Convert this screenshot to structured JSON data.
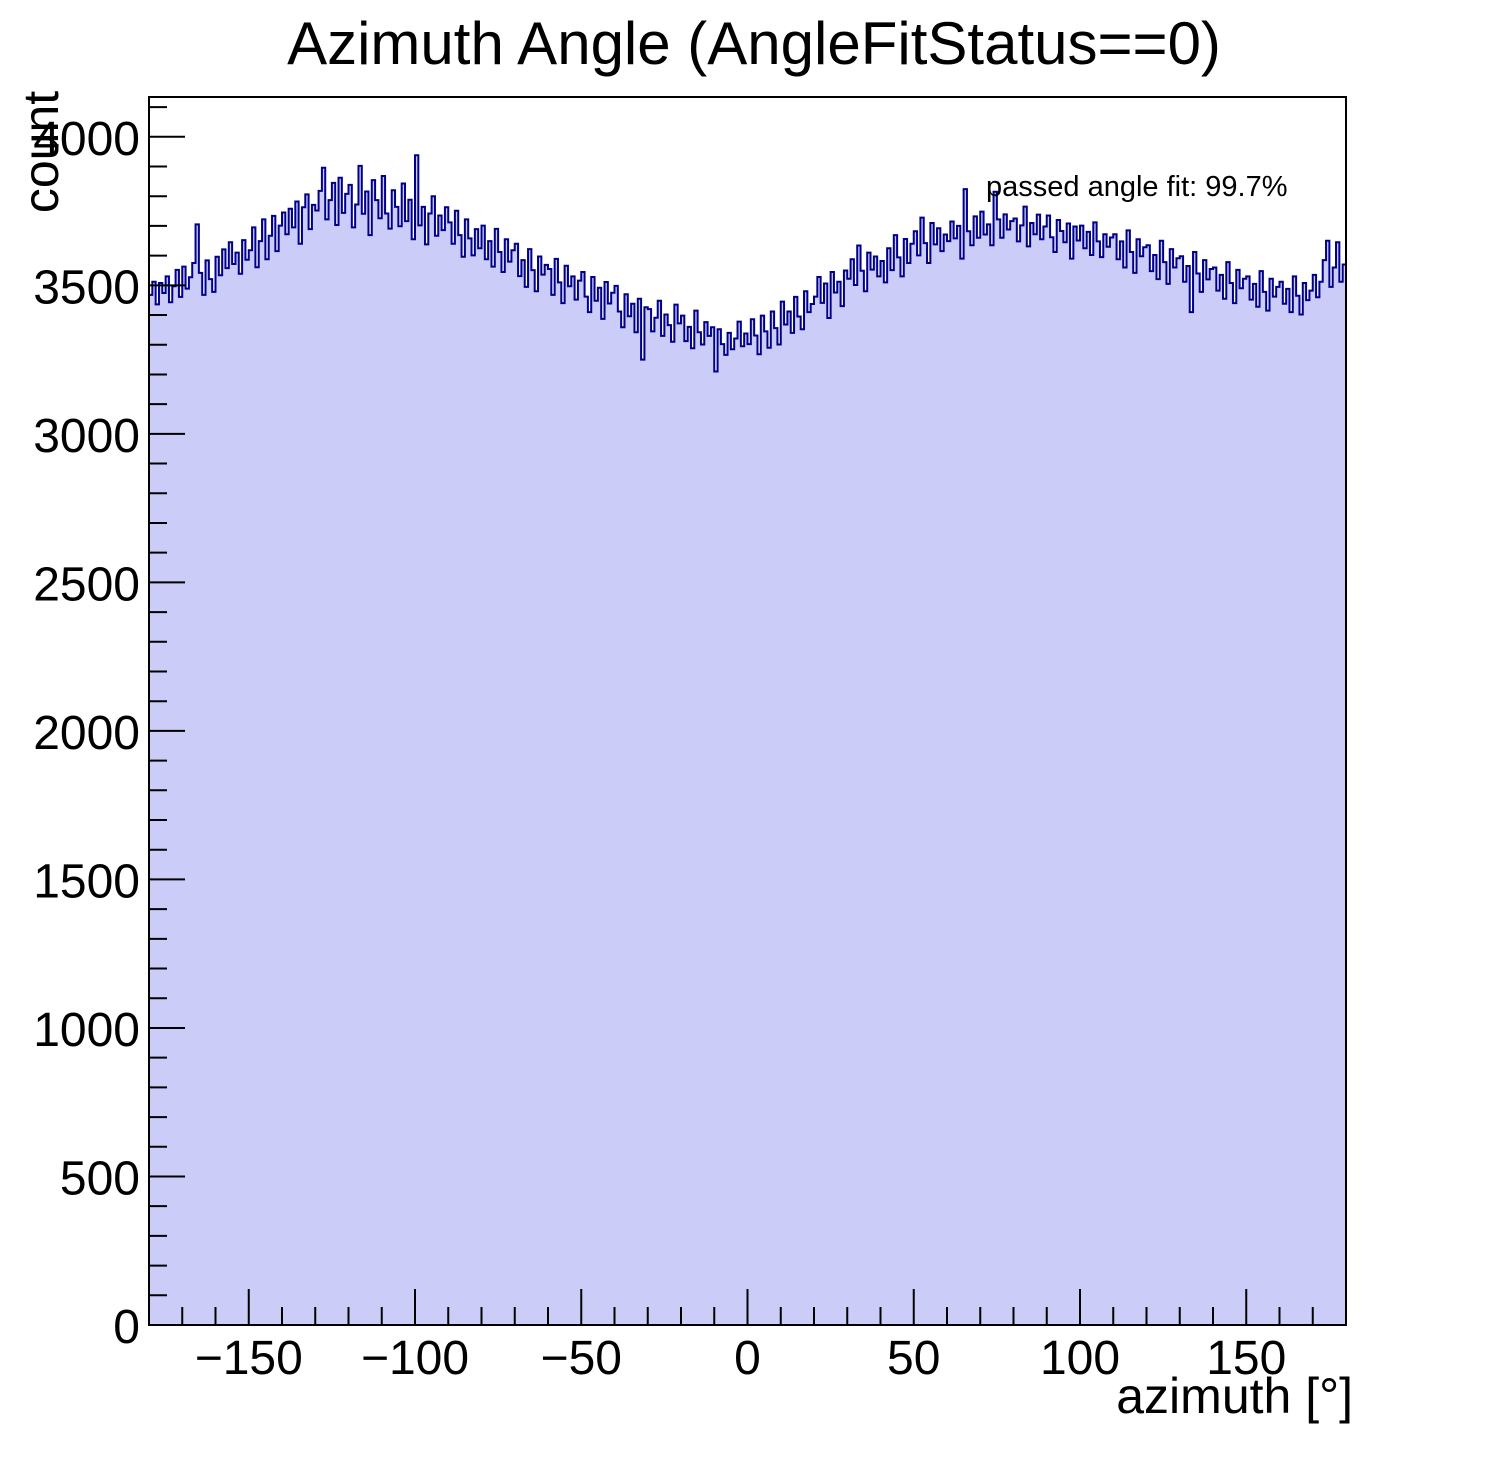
{
  "chart_data": {
    "type": "histogram",
    "title": "Azimuth Angle (AngleFitStatus==0)",
    "xlabel": "azimuth [°]",
    "ylabel": "count",
    "annotation": "passed angle fit: 99.7%",
    "xlim": [
      -180,
      180
    ],
    "ylim": [
      0,
      4134
    ],
    "x_start_deg": -180,
    "bin_width_deg": 1,
    "xticks_major": [
      -150,
      -100,
      -50,
      0,
      50,
      100,
      150
    ],
    "xtick_labels": [
      "−150",
      "−100",
      "−50",
      "0",
      "50",
      "100",
      "150"
    ],
    "x_minor_step": 10,
    "yticks_major": [
      0,
      500,
      1000,
      1500,
      2000,
      2500,
      3000,
      3500,
      4000
    ],
    "ytick_labels": [
      "0",
      "500",
      "1000",
      "1500",
      "2000",
      "2500",
      "3000",
      "3500",
      "4000"
    ],
    "y_minor_step": 100,
    "grid": false,
    "legend_position": "none",
    "line_color": "#00008b",
    "fill_color": "#ccccf9",
    "text_color": "#000000",
    "counts": [
      3468,
      3512,
      3436,
      3508,
      3474,
      3530,
      3443,
      3497,
      3552,
      3461,
      3563,
      3489,
      3527,
      3575,
      3705,
      3542,
      3468,
      3584,
      3521,
      3478,
      3596,
      3534,
      3621,
      3558,
      3645,
      3572,
      3610,
      3539,
      3652,
      3586,
      3618,
      3695,
      3561,
      3649,
      3722,
      3588,
      3667,
      3734,
      3615,
      3701,
      3745,
      3672,
      3758,
      3695,
      3782,
      3640,
      3763,
      3806,
      3689,
      3771,
      3752,
      3818,
      3896,
      3722,
      3787,
      3845,
      3703,
      3862,
      3744,
      3808,
      3838,
      3695,
      3772,
      3902,
      3741,
      3816,
      3669,
      3854,
      3787,
      3726,
      3868,
      3742,
      3691,
      3820,
      3764,
      3699,
      3843,
      3716,
      3788,
      3655,
      3938,
      3702,
      3764,
      3638,
      3742,
      3800,
      3667,
      3735,
      3686,
      3763,
      3712,
      3640,
      3751,
      3669,
      3596,
      3722,
      3658,
      3601,
      3689,
      3625,
      3701,
      3588,
      3649,
      3563,
      3690,
      3612,
      3545,
      3655,
      3580,
      3618,
      3640,
      3531,
      3585,
      3495,
      3622,
      3551,
      3480,
      3597,
      3536,
      3569,
      3555,
      3468,
      3589,
      3510,
      3440,
      3566,
      3497,
      3530,
      3452,
      3516,
      3545,
      3462,
      3410,
      3528,
      3448,
      3492,
      3387,
      3511,
      3439,
      3475,
      3498,
      3412,
      3359,
      3470,
      3396,
      3438,
      3342,
      3455,
      3250,
      3426,
      3420,
      3345,
      3391,
      3448,
      3330,
      3402,
      3366,
      3310,
      3435,
      3372,
      3398,
      3312,
      3360,
      3288,
      3415,
      3342,
      3301,
      3376,
      3330,
      3359,
      3210,
      3352,
      3302,
      3266,
      3340,
      3285,
      3321,
      3378,
      3295,
      3338,
      3302,
      3386,
      3331,
      3268,
      3398,
      3345,
      3290,
      3412,
      3356,
      3301,
      3445,
      3368,
      3412,
      3340,
      3461,
      3395,
      3352,
      3480,
      3410,
      3437,
      3462,
      3528,
      3441,
      3506,
      3390,
      3545,
      3476,
      3512,
      3430,
      3550,
      3522,
      3588,
      3501,
      3634,
      3549,
      3480,
      3610,
      3553,
      3597,
      3530,
      3582,
      3510,
      3625,
      3551,
      3669,
      3594,
      3530,
      3656,
      3575,
      3640,
      3682,
      3601,
      3728,
      3642,
      3575,
      3710,
      3638,
      3692,
      3615,
      3671,
      3649,
      3715,
      3658,
      3700,
      3590,
      3824,
      3682,
      3635,
      3732,
      3660,
      3748,
      3671,
      3705,
      3635,
      3815,
      3722,
      3660,
      3739,
      3688,
      3716,
      3725,
      3648,
      3702,
      3765,
      3631,
      3710,
      3672,
      3738,
      3655,
      3698,
      3735,
      3662,
      3612,
      3720,
      3683,
      3645,
      3708,
      3590,
      3698,
      3651,
      3701,
      3625,
      3680,
      3602,
      3712,
      3648,
      3595,
      3672,
      3630,
      3661,
      3672,
      3588,
      3648,
      3560,
      3685,
      3612,
      3542,
      3655,
      3598,
      3628,
      3635,
      3548,
      3602,
      3521,
      3650,
      3578,
      3505,
      3622,
      3560,
      3591,
      3598,
      3512,
      3565,
      3410,
      3612,
      3540,
      3478,
      3585,
      3520,
      3555,
      3560,
      3482,
      3535,
      3455,
      3578,
      3508,
      3440,
      3552,
      3490,
      3522,
      3530,
      3452,
      3505,
      3428,
      3548,
      3478,
      3415,
      3522,
      3462,
      3495,
      3512,
      3438,
      3488,
      3410,
      3530,
      3465,
      3402,
      3508,
      3450,
      3482,
      3535,
      3460,
      3512,
      3585,
      3650,
      3495,
      3560,
      3645,
      3512,
      3570
    ]
  }
}
